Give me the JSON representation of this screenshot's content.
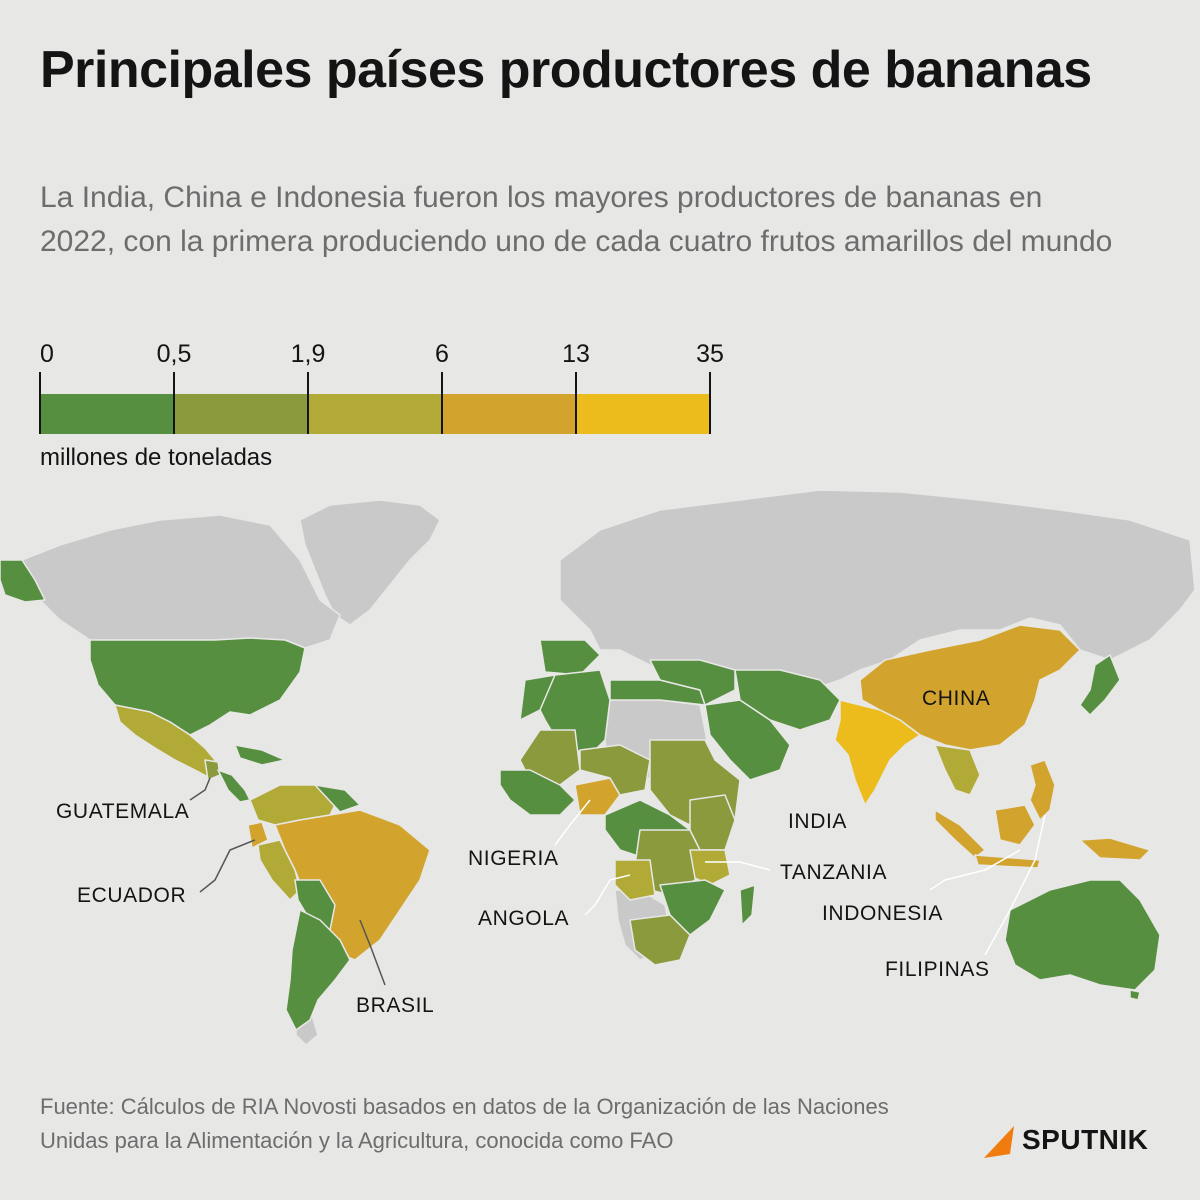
{
  "header": {
    "title": "Principales países productores de bananas",
    "subtitle": "La India, China e Indonesia fueron los mayores productores de bananas en 2022, con la primera produciendo uno de cada cuatro frutos amarillos del mundo"
  },
  "legend": {
    "unit": "millones de toneladas",
    "ticks": [
      "0",
      "0,5",
      "1,9",
      "6",
      "13",
      "35"
    ],
    "colors": [
      "#578f40",
      "#8a9a3c",
      "#b2aa37",
      "#d2a42d",
      "#ecbc1c"
    ]
  },
  "map": {
    "colors": {
      "no_data": "#c9c9c9",
      "background": "#e7e7e6",
      "border": "#e7e7e6",
      "leader": "#555555"
    },
    "labels": {
      "china": "CHINA",
      "india": "INDIA",
      "indonesia": "INDONESIA",
      "filipinas": "FILIPINAS",
      "tanzania": "TANZANIA",
      "nigeria": "NIGERIA",
      "angola": "ANGOLA",
      "brasil": "BRASIL",
      "ecuador": "ECUADOR",
      "guatemala": "GUATEMALA"
    }
  },
  "source": "Fuente: Cálculos de RIA Novosti basados en datos de la Organización de las Naciones Unidas para la Alimentación y la Agricultura, conocida como FAO",
  "brand": {
    "name": "SPUTNIK",
    "color": "#f07c0f"
  }
}
